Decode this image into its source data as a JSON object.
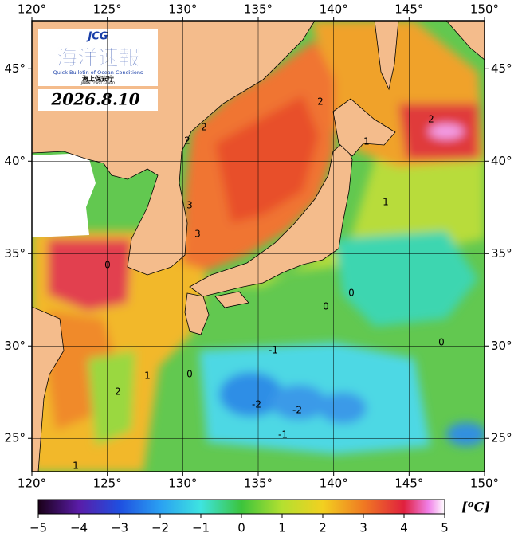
{
  "logo": {
    "badge": "JCG",
    "title": "海洋速報",
    "subtitle": "Quick Bulletin of Ocean Conditions",
    "agency": "海上保安庁",
    "agency_en": "JAPAN COAST GUARD"
  },
  "date": "2026.8.10",
  "map": {
    "xlim": [
      120,
      150
    ],
    "ylim": [
      23.2,
      47.6
    ],
    "xticks": [
      {
        "value": 120,
        "label": "120°"
      },
      {
        "value": 125,
        "label": "125°"
      },
      {
        "value": 130,
        "label": "130°"
      },
      {
        "value": 135,
        "label": "135°"
      },
      {
        "value": 140,
        "label": "140°"
      },
      {
        "value": 145,
        "label": "145°"
      },
      {
        "value": 150,
        "label": "150°"
      }
    ],
    "yticks": [
      {
        "value": 25,
        "label": "25°"
      },
      {
        "value": 30,
        "label": "30°"
      },
      {
        "value": 35,
        "label": "35°"
      },
      {
        "value": 40,
        "label": "40°"
      },
      {
        "value": 45,
        "label": "45°"
      }
    ],
    "contour_labels": [
      "2",
      "2",
      "2",
      "1",
      "2",
      "3",
      "3",
      "1",
      "0",
      "0",
      "0",
      "0",
      "-1",
      "1",
      "0",
      "2",
      "-2",
      "-2",
      "-1",
      "1"
    ]
  },
  "colorbar": {
    "lim": [
      -5,
      5
    ],
    "ticks": [
      {
        "value": -5,
        "label": "−5"
      },
      {
        "value": -4,
        "label": "−4"
      },
      {
        "value": -3,
        "label": "−3"
      },
      {
        "value": -2,
        "label": "−2"
      },
      {
        "value": -1,
        "label": "−1"
      },
      0,
      1,
      2,
      3,
      4,
      5
    ],
    "unit": "[ºC]"
  }
}
